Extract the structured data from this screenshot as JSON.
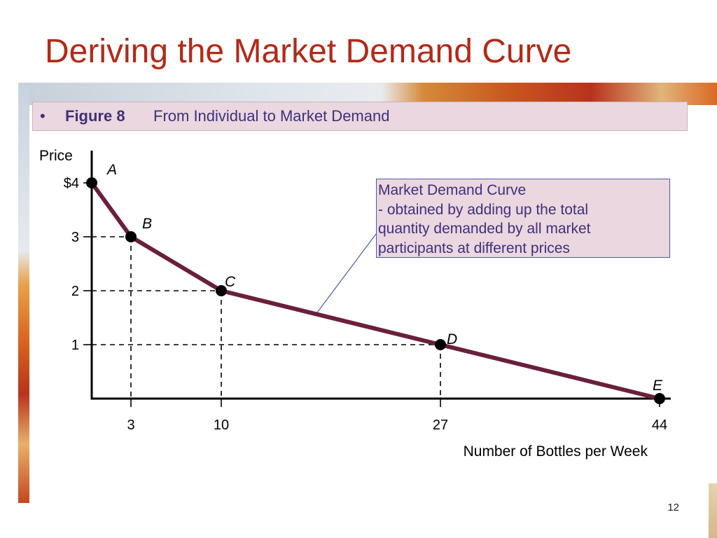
{
  "slide": {
    "title": "Deriving the Market Demand Curve",
    "bullet": "•",
    "figure_label": "Figure 8",
    "figure_caption": "From Individual to Market Demand",
    "page_number": "12"
  },
  "callout": {
    "line1": "Market Demand Curve",
    "line2": "- obtained by adding up the total",
    "line3": "quantity demanded by all market",
    "line4": "participants at different prices"
  },
  "colors": {
    "title": "#b22a18",
    "curve": "#6b1f3c",
    "callout_text": "#40307a",
    "banner_bg": "#ead7df",
    "axis": "#000000"
  },
  "chart_data": {
    "type": "line",
    "ylabel": "Price",
    "xlabel": "Number of Bottles per Week",
    "y_tick_labels": [
      {
        "value": 4,
        "label": "$4"
      },
      {
        "value": 3,
        "label": "3"
      },
      {
        "value": 2,
        "label": "2"
      },
      {
        "value": 1,
        "label": "1"
      }
    ],
    "x_tick_labels": [
      {
        "value": 3,
        "label": "3"
      },
      {
        "value": 10,
        "label": "10"
      },
      {
        "value": 27,
        "label": "27"
      },
      {
        "value": 44,
        "label": "44"
      }
    ],
    "xlim": [
      0,
      44
    ],
    "ylim": [
      0,
      4
    ],
    "grid": false,
    "reference_lines": "dashed lines from points B, C, D to both axes",
    "points": [
      {
        "label": "A",
        "x": 0,
        "y": 4
      },
      {
        "label": "B",
        "x": 3,
        "y": 3
      },
      {
        "label": "C",
        "x": 10,
        "y": 2
      },
      {
        "label": "D",
        "x": 27,
        "y": 1
      },
      {
        "label": "E",
        "x": 44,
        "y": 0
      }
    ]
  }
}
